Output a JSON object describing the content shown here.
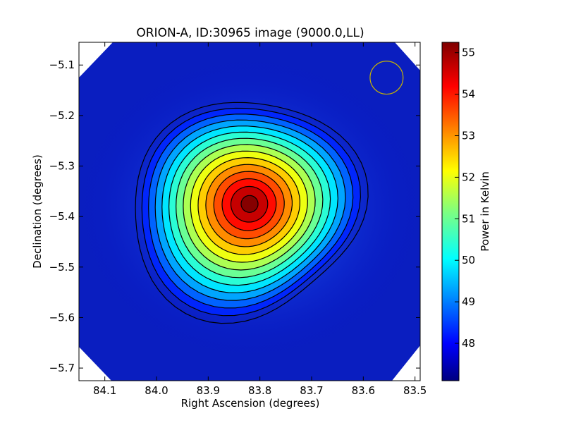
{
  "chart_data": {
    "type": "heatmap",
    "title": "ORION-A, ID:30965 image (9000.0,LL)",
    "xlabel": "Right Ascension (degrees)",
    "ylabel": "Declination (degrees)",
    "colorbar_label": "Power in Kelvin",
    "xlim": [
      84.15,
      83.49
    ],
    "ylim": [
      -5.725,
      -5.055
    ],
    "x_ticks": [
      84.1,
      84.0,
      83.9,
      83.8,
      83.7,
      83.6,
      83.5
    ],
    "x_tick_labels": [
      "84.1",
      "84.0",
      "83.9",
      "83.8",
      "83.7",
      "83.6",
      "83.5"
    ],
    "y_ticks": [
      -5.1,
      -5.2,
      -5.3,
      -5.4,
      -5.5,
      -5.6,
      -5.7
    ],
    "y_tick_labels": [
      "−5.1",
      "−5.2",
      "−5.3",
      "−5.4",
      "−5.5",
      "−5.6",
      "−5.7"
    ],
    "colorbar_range": [
      47.1,
      55.25
    ],
    "colorbar_ticks": [
      48,
      49,
      50,
      51,
      52,
      53,
      54,
      55
    ],
    "colorbar_tick_labels": [
      "48",
      "49",
      "50",
      "51",
      "52",
      "53",
      "54",
      "55"
    ],
    "colormap": "jet",
    "peak": {
      "ra": 83.82,
      "dec": -5.375,
      "value": 55.25
    },
    "background_level": 47.3,
    "contour_color": "#000000",
    "beam_circle": {
      "ra": 83.555,
      "dec": -5.125,
      "radius_deg": 0.057,
      "color": "#c8b400"
    }
  }
}
